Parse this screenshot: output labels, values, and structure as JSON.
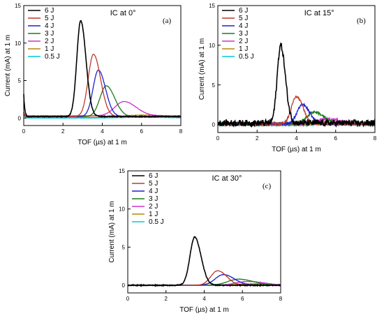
{
  "colors": {
    "6 J": "#000000",
    "5 J": "#c0392b",
    "4 J": "#1f1fd1",
    "3 J": "#1f7a1f",
    "2 J": "#cc33cc",
    "1 J": "#b8860b",
    "0.5 J": "#00c8d8"
  },
  "chart_data": [
    {
      "type": "line",
      "panel_label": "(a)",
      "annotation": "IC at 0°",
      "xlabel": "TOF (µs) at 1 m",
      "ylabel": "Current (mA) at 1 m",
      "xlim": [
        0,
        8
      ],
      "ylim": [
        -1,
        15
      ],
      "xticks": [
        "0",
        "2",
        "4",
        "6",
        "8"
      ],
      "yticks": [
        "0",
        "5",
        "10",
        "15"
      ],
      "legend_position": "top-left",
      "series": [
        {
          "name": "6 J",
          "peak_x": 2.9,
          "peak_y": 12.8,
          "width": 0.28,
          "base": 0.2
        },
        {
          "name": "5 J",
          "peak_x": 3.55,
          "peak_y": 8.3,
          "width": 0.38,
          "base": 0.2
        },
        {
          "name": "4 J",
          "peak_x": 3.8,
          "peak_y": 6.2,
          "width": 0.38,
          "base": 0.2
        },
        {
          "name": "3 J",
          "peak_x": 4.2,
          "peak_y": 4.1,
          "width": 0.45,
          "base": 0.2
        },
        {
          "name": "2 J",
          "peak_x": 5.1,
          "peak_y": 1.9,
          "width": 0.65,
          "base": 0.3
        },
        {
          "name": "1 J",
          "peak_x": 6.0,
          "peak_y": 0.3,
          "width": 1.2,
          "base": 0.1
        },
        {
          "name": "0.5 J",
          "peak_x": 6.0,
          "peak_y": 0.1,
          "width": 1.5,
          "base": 0.0
        }
      ]
    },
    {
      "type": "line",
      "panel_label": "(b)",
      "annotation": "IC at 15°",
      "xlabel": "TOF (µs) at 1 m",
      "ylabel": "Current (mA) at 1 m",
      "xlim": [
        0,
        8
      ],
      "ylim": [
        -1,
        15
      ],
      "xticks": [
        "0",
        "2",
        "4",
        "6",
        "8"
      ],
      "yticks": [
        "0",
        "5",
        "10",
        "15"
      ],
      "legend_position": "top-left",
      "series": [
        {
          "name": "6 J",
          "peak_x": 3.2,
          "peak_y": 9.8,
          "width": 0.25,
          "base": 0.2
        },
        {
          "name": "5 J",
          "peak_x": 4.0,
          "peak_y": 3.4,
          "width": 0.35,
          "base": 0.1
        },
        {
          "name": "4 J",
          "peak_x": 4.3,
          "peak_y": 2.4,
          "width": 0.38,
          "base": 0.1
        },
        {
          "name": "3 J",
          "peak_x": 4.9,
          "peak_y": 1.5,
          "width": 0.5,
          "base": 0.1
        },
        {
          "name": "2 J",
          "peak_x": 5.6,
          "peak_y": 0.6,
          "width": 0.7,
          "base": 0.1
        },
        {
          "name": "1 J",
          "peak_x": 6.0,
          "peak_y": 0.2,
          "width": 1.0,
          "base": 0.0
        },
        {
          "name": "0.5 J",
          "peak_x": 6.0,
          "peak_y": 0.1,
          "width": 1.2,
          "base": 0.0
        }
      ]
    },
    {
      "type": "line",
      "panel_label": "(c)",
      "annotation": "IC at 30°",
      "xlabel": "TOF (µs) at 1 m",
      "ylabel": "Current (mA) at 1 m",
      "xlim": [
        0,
        8
      ],
      "ylim": [
        -1,
        15
      ],
      "xticks": [
        "0",
        "2",
        "4",
        "6",
        "8"
      ],
      "yticks": [
        "0",
        "5",
        "10",
        "15"
      ],
      "legend_position": "top-left",
      "series": [
        {
          "name": "6 J",
          "peak_x": 3.5,
          "peak_y": 6.3,
          "width": 0.35,
          "base": 0.0
        },
        {
          "name": "5 J",
          "peak_x": 4.7,
          "peak_y": 1.9,
          "width": 0.5,
          "base": 0.0
        },
        {
          "name": "4 J",
          "peak_x": 5.0,
          "peak_y": 1.4,
          "width": 0.6,
          "base": 0.0
        },
        {
          "name": "3 J",
          "peak_x": 5.8,
          "peak_y": 0.8,
          "width": 0.8,
          "base": 0.0
        },
        {
          "name": "2 J",
          "peak_x": 6.3,
          "peak_y": 0.5,
          "width": 0.9,
          "base": 0.0
        },
        {
          "name": "1 J",
          "peak_x": 6.5,
          "peak_y": 0.2,
          "width": 1.0,
          "base": 0.0
        },
        {
          "name": "0.5 J",
          "peak_x": 6.5,
          "peak_y": 0.1,
          "width": 1.2,
          "base": 0.0
        }
      ]
    }
  ]
}
